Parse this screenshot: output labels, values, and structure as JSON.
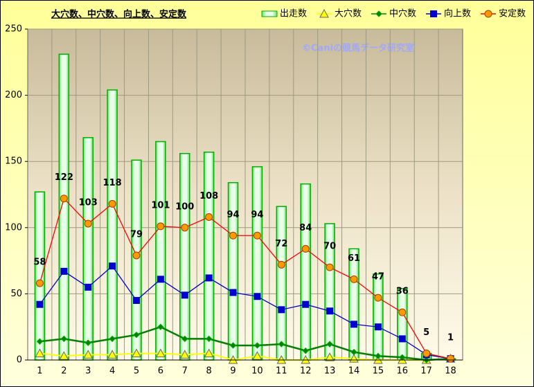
{
  "chart_data": {
    "type": "bar",
    "title": "大穴数、中穴数、向上数、安定数",
    "annotation": "©Caniの競馬データ研究室",
    "categories": [
      "1",
      "2",
      "3",
      "4",
      "5",
      "6",
      "7",
      "8",
      "9",
      "10",
      "11",
      "12",
      "13",
      "14",
      "15",
      "16",
      "17",
      "18"
    ],
    "ylim": [
      0,
      250
    ],
    "yticks": [
      0,
      50,
      100,
      150,
      200,
      250
    ],
    "grid": true,
    "legend": "top",
    "series": [
      {
        "name": "出走数",
        "type": "bar",
        "color": "#00b000",
        "values": [
          127,
          231,
          168,
          204,
          151,
          165,
          156,
          157,
          134,
          146,
          116,
          133,
          103,
          84,
          65,
          54,
          5,
          1
        ]
      },
      {
        "name": "大穴数",
        "type": "line",
        "marker": "triangle",
        "color": "#ffff00",
        "values": [
          5,
          3,
          4,
          4,
          5,
          5,
          4,
          5,
          0,
          3,
          0,
          0,
          2,
          1,
          0,
          0,
          0,
          1
        ]
      },
      {
        "name": "中穴数",
        "type": "line",
        "marker": "diamond",
        "color": "#008000",
        "values": [
          14,
          16,
          13,
          16,
          19,
          25,
          16,
          16,
          11,
          11,
          12,
          7,
          12,
          6,
          3,
          2,
          0,
          1
        ]
      },
      {
        "name": "向上数",
        "type": "line",
        "marker": "square",
        "color": "#0000cc",
        "values": [
          42,
          67,
          55,
          71,
          45,
          61,
          49,
          62,
          51,
          48,
          38,
          42,
          37,
          27,
          25,
          16,
          4,
          1
        ]
      },
      {
        "name": "安定数",
        "type": "line",
        "marker": "circle",
        "color": "#ff0000",
        "marker_color": "#ff9900",
        "data_labels": true,
        "values": [
          58,
          122,
          103,
          118,
          79,
          101,
          100,
          108,
          94,
          94,
          72,
          84,
          70,
          61,
          47,
          36,
          5,
          1
        ]
      }
    ]
  }
}
